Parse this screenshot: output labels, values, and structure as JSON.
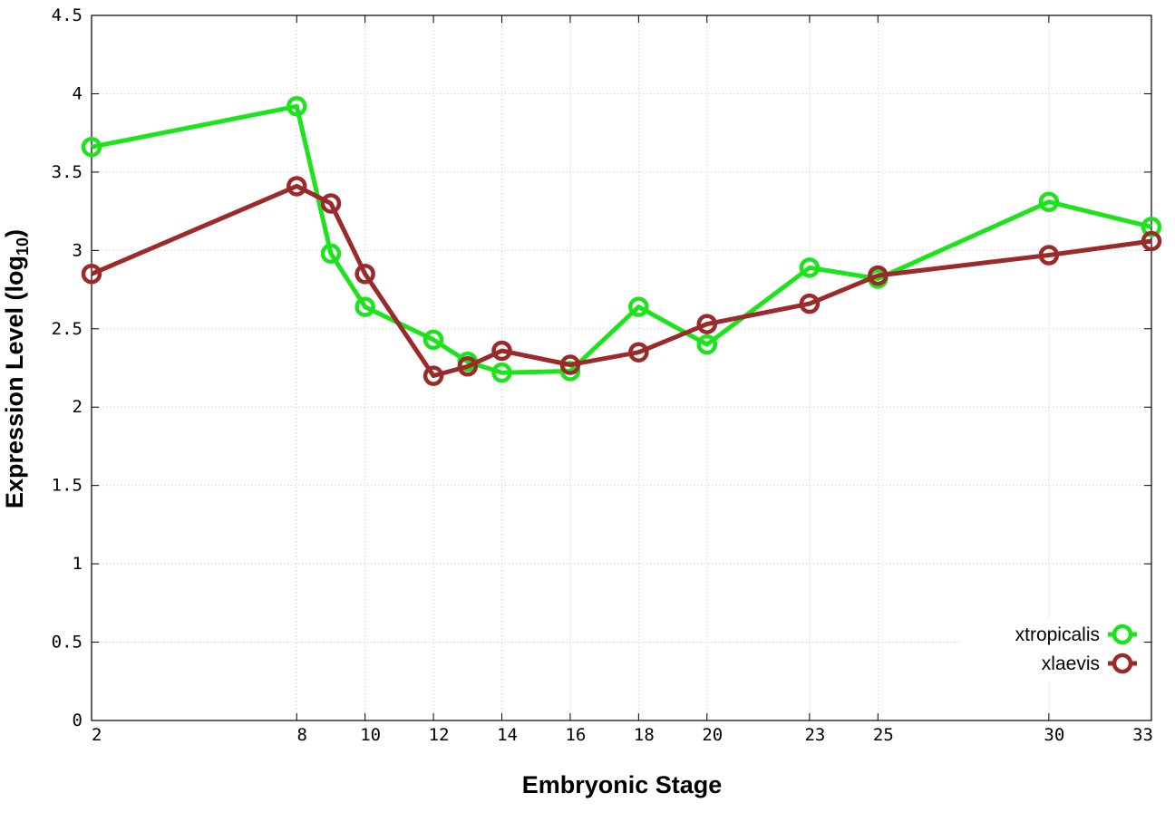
{
  "chart_data": {
    "type": "line",
    "xlabel": "Embryonic Stage",
    "ylabel_main": "Expression Level (log",
    "ylabel_sub": "10",
    "ylabel_close": ")",
    "x_ticks": [
      2,
      8,
      10,
      12,
      14,
      16,
      18,
      20,
      23,
      25,
      30,
      33
    ],
    "y_ticks": [
      {
        "value": 0,
        "label": "0"
      },
      {
        "value": 0.5,
        "label": "0.5"
      },
      {
        "value": 1,
        "label": "1"
      },
      {
        "value": 1.5,
        "label": "1.5"
      },
      {
        "value": 2,
        "label": "2"
      },
      {
        "value": 2.5,
        "label": "2.5"
      },
      {
        "value": 3,
        "label": "3"
      },
      {
        "value": 3.5,
        "label": "3.5"
      },
      {
        "value": 4,
        "label": "4"
      },
      {
        "value": 4.5,
        "label": "4.5"
      }
    ],
    "xlim": [
      2,
      33
    ],
    "ylim": [
      0,
      4.5
    ],
    "grid": true,
    "legend_position": "bottom-right",
    "x": [
      2,
      8,
      9,
      10,
      12,
      13,
      14,
      16,
      18,
      20,
      23,
      25,
      30,
      33
    ],
    "series": [
      {
        "name": "xtropicalis",
        "color": "#1de31d",
        "values": [
          3.66,
          3.92,
          2.98,
          2.64,
          2.43,
          2.29,
          2.22,
          2.23,
          2.64,
          2.4,
          2.89,
          2.82,
          3.31,
          3.15
        ]
      },
      {
        "name": "xlaevis",
        "color": "#9b2a2a",
        "values": [
          2.85,
          3.41,
          3.3,
          2.85,
          2.2,
          2.26,
          2.36,
          2.27,
          2.35,
          2.53,
          2.66,
          2.84,
          2.97,
          3.06
        ]
      }
    ]
  }
}
